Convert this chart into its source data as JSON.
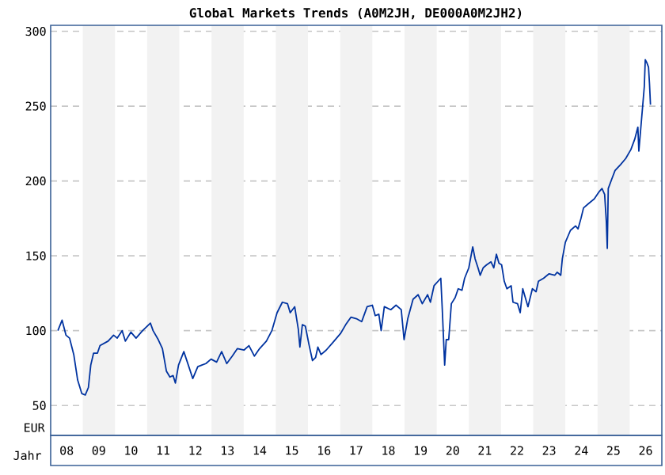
{
  "chart_data": {
    "type": "line",
    "title": "Global Markets Trends (A0M2JH, DE000A0M2JH2)",
    "xlabel": "Jahr",
    "ylabel": "EUR",
    "xlim": [
      "2008-01-01",
      "2027-01-01"
    ],
    "ylim": [
      30,
      304
    ],
    "xticks": [
      {
        "value": "2008-07-01",
        "label": "08"
      },
      {
        "value": "2009-07-01",
        "label": "09"
      },
      {
        "value": "2010-07-01",
        "label": "10"
      },
      {
        "value": "2011-07-01",
        "label": "11"
      },
      {
        "value": "2012-07-01",
        "label": "12"
      },
      {
        "value": "2013-07-01",
        "label": "13"
      },
      {
        "value": "2014-07-01",
        "label": "14"
      },
      {
        "value": "2015-07-01",
        "label": "15"
      },
      {
        "value": "2016-07-01",
        "label": "16"
      },
      {
        "value": "2017-07-01",
        "label": "17"
      },
      {
        "value": "2018-07-01",
        "label": "18"
      },
      {
        "value": "2019-07-01",
        "label": "19"
      },
      {
        "value": "2020-07-01",
        "label": "20"
      },
      {
        "value": "2021-07-01",
        "label": "21"
      },
      {
        "value": "2022-07-01",
        "label": "22"
      },
      {
        "value": "2023-07-01",
        "label": "23"
      },
      {
        "value": "2024-07-01",
        "label": "24"
      },
      {
        "value": "2025-07-01",
        "label": "25"
      },
      {
        "value": "2026-07-01",
        "label": "26"
      }
    ],
    "yticks": [
      50,
      100,
      150,
      200,
      250,
      300
    ],
    "grid": "y",
    "bands": [
      {
        "axis": "x",
        "from": "2009-01-01",
        "to": "2010-01-01",
        "color": "#f2f2f2"
      },
      {
        "axis": "x",
        "from": "2011-01-01",
        "to": "2012-01-01",
        "color": "#f2f2f2"
      },
      {
        "axis": "x",
        "from": "2013-01-01",
        "to": "2014-01-01",
        "color": "#f2f2f2"
      },
      {
        "axis": "x",
        "from": "2015-01-01",
        "to": "2016-01-01",
        "color": "#f2f2f2"
      },
      {
        "axis": "x",
        "from": "2017-01-01",
        "to": "2018-01-01",
        "color": "#f2f2f2"
      },
      {
        "axis": "x",
        "from": "2019-01-01",
        "to": "2020-01-01",
        "color": "#f2f2f2"
      },
      {
        "axis": "x",
        "from": "2021-01-01",
        "to": "2022-01-01",
        "color": "#f2f2f2"
      },
      {
        "axis": "x",
        "from": "2023-01-01",
        "to": "2024-01-01",
        "color": "#f2f2f2"
      },
      {
        "axis": "x",
        "from": "2025-01-01",
        "to": "2026-01-01",
        "color": "#f2f2f2"
      }
    ],
    "series": [
      {
        "color": "#0033a0",
        "x": [
          "2008-03-23",
          "2008-05-10",
          "2008-06-23",
          "2008-08-03",
          "2008-09-20",
          "2008-11-03",
          "2008-12-20",
          "2009-01-29",
          "2009-03-05",
          "2009-04-01",
          "2009-05-03",
          "2009-06-16",
          "2009-07-15",
          "2009-10-15",
          "2009-12-16",
          "2010-01-26",
          "2010-03-23",
          "2010-04-29",
          "2010-07-01",
          "2010-08-28",
          "2010-11-10",
          "2011-02-07",
          "2011-03-09",
          "2011-05-07",
          "2011-06-23",
          "2011-08-07",
          "2011-09-16",
          "2011-10-22",
          "2011-11-17",
          "2011-12-23",
          "2012-02-21",
          "2012-04-01",
          "2012-06-02",
          "2012-07-29",
          "2012-10-29",
          "2012-12-27",
          "2013-02-28",
          "2013-04-26",
          "2013-06-23",
          "2013-08-25",
          "2013-10-22",
          "2014-01-04",
          "2014-03-02",
          "2014-05-03",
          "2014-07-01",
          "2014-09-16",
          "2014-11-17",
          "2015-01-15",
          "2015-03-16",
          "2015-05-14",
          "2015-06-13",
          "2015-08-03",
          "2015-09-13",
          "2015-10-01",
          "2015-10-29",
          "2015-12-02",
          "2016-01-11",
          "2016-02-21",
          "2016-03-27",
          "2016-04-22",
          "2016-05-28",
          "2016-07-26",
          "2016-10-08",
          "2017-01-04",
          "2017-03-05",
          "2017-05-03",
          "2017-07-04",
          "2017-09-02",
          "2017-11-03",
          "2018-01-01",
          "2018-02-03",
          "2018-03-16",
          "2018-04-11",
          "2018-05-17",
          "2018-07-29",
          "2018-09-27",
          "2018-11-25",
          "2018-12-27",
          "2019-02-07",
          "2019-04-08",
          "2019-06-05",
          "2019-07-22",
          "2019-09-20",
          "2019-10-22",
          "2019-12-02",
          "2020-02-17",
          "2020-03-05",
          "2020-04-01",
          "2020-04-19",
          "2020-05-17",
          "2020-06-16",
          "2020-07-29",
          "2020-09-02",
          "2020-10-15",
          "2020-11-14",
          "2021-01-01",
          "2021-02-14",
          "2021-03-13",
          "2021-04-15",
          "2021-05-10",
          "2021-06-13",
          "2021-07-22",
          "2021-09-09",
          "2021-10-11",
          "2021-11-10",
          "2021-12-09",
          "2022-01-08",
          "2022-02-07",
          "2022-03-09",
          "2022-04-26",
          "2022-05-17",
          "2022-07-08",
          "2022-08-07",
          "2022-09-05",
          "2022-10-04",
          "2022-11-03",
          "2022-12-23",
          "2023-02-03",
          "2023-03-02",
          "2023-04-29",
          "2023-07-01",
          "2023-09-02",
          "2023-10-01",
          "2023-11-10",
          "2023-11-28",
          "2024-01-01",
          "2024-02-28",
          "2024-04-26",
          "2024-05-25",
          "2024-06-27",
          "2024-07-26",
          "2024-09-23",
          "2024-11-25",
          "2025-01-22",
          "2025-02-21",
          "2025-03-23",
          "2025-04-11",
          "2025-04-22",
          "2025-05-03",
          "2025-06-10",
          "2025-07-19",
          "2025-09-20",
          "2025-11-17",
          "2026-01-15",
          "2026-02-28",
          "2026-04-04",
          "2026-04-15",
          "2026-05-14",
          "2026-06-16",
          "2026-06-27",
          "2026-07-15",
          "2026-08-03",
          "2026-08-14",
          "2026-08-25"
        ],
        "values": [
          100,
          107,
          97,
          95,
          84,
          67,
          58,
          57,
          62,
          77,
          85,
          85,
          90,
          93,
          97,
          95,
          100,
          93,
          99,
          95,
          100,
          105,
          100,
          94,
          88,
          73,
          69,
          70,
          65,
          77,
          86,
          79,
          68,
          76,
          78,
          81,
          79,
          86,
          78,
          83,
          88,
          87,
          90,
          83,
          88,
          93,
          100,
          112,
          119,
          118,
          112,
          116,
          101,
          89,
          104,
          103,
          91,
          80,
          82,
          89,
          84,
          87,
          92,
          98,
          104,
          109,
          108,
          106,
          116,
          117,
          110,
          111,
          100,
          116,
          114,
          117,
          114,
          94,
          108,
          121,
          124,
          118,
          124,
          119,
          130,
          135,
          114,
          77,
          94,
          94,
          118,
          122,
          128,
          127,
          135,
          142,
          156,
          148,
          142,
          137,
          142,
          144,
          146,
          142,
          151,
          145,
          144,
          133,
          128,
          130,
          119,
          118,
          112,
          128,
          122,
          116,
          128,
          126,
          133,
          135,
          138,
          137,
          139,
          137,
          148,
          159,
          167,
          170,
          168,
          175,
          182,
          185,
          188,
          193,
          195,
          191,
          173,
          155,
          195,
          201,
          207,
          211,
          215,
          221,
          228,
          236,
          220,
          240,
          263,
          281,
          279,
          276,
          265,
          251
        ]
      }
    ]
  }
}
